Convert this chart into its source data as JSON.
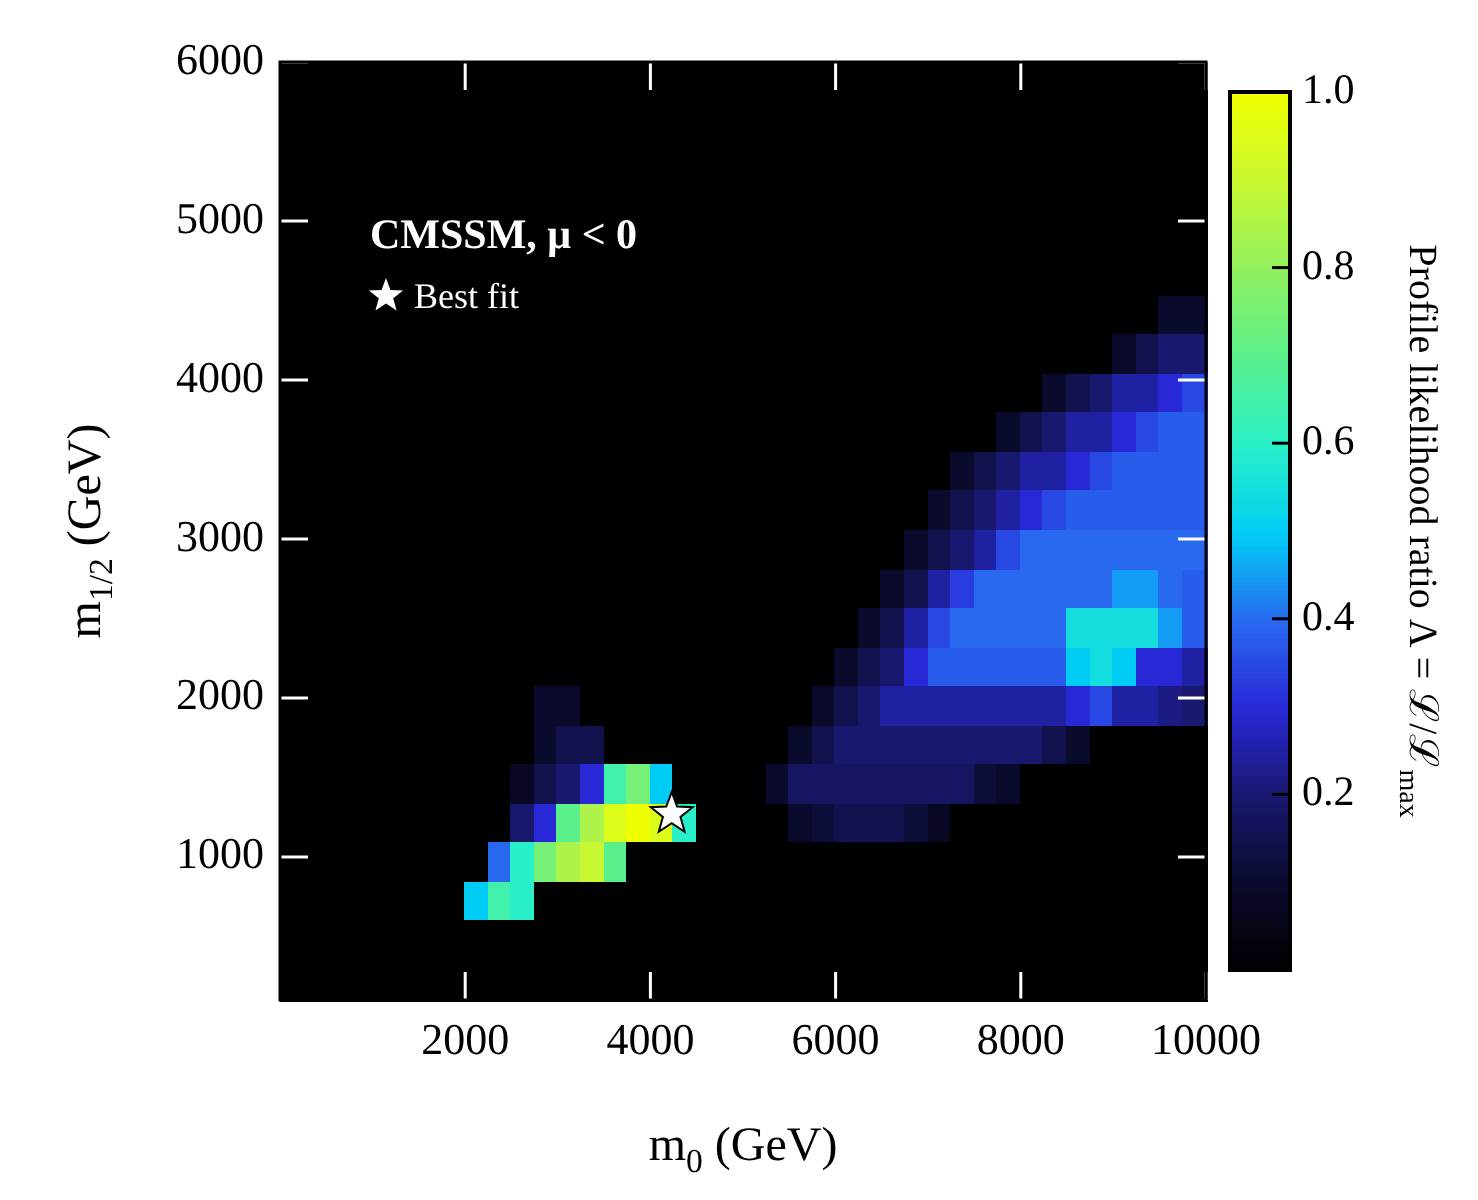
{
  "chart_data": {
    "type": "heatmap",
    "annotations": [
      "CMSSM, μ < 0"
    ],
    "xlabel": "m$_{0}$ (GeV)",
    "ylabel": "m$_{1/2}$ (GeV)",
    "clabel": "Profile likelihood ratio Λ = ℒ/ℒ$_{max}$",
    "xlim": [
      0,
      10000
    ],
    "xticks": [
      2000,
      4000,
      6000,
      8000,
      10000
    ],
    "ylim": [
      100,
      6000
    ],
    "yticks": [
      1000,
      2000,
      3000,
      4000,
      5000,
      6000
    ],
    "clim": [
      0,
      1
    ],
    "cticks": [
      0.2,
      0.4,
      0.6,
      0.8,
      {
        "value": 1,
        "label": "1.0"
      }
    ],
    "legend": "top left",
    "series": [
      {
        "type": "scatter",
        "name": "Best fit",
        "color": "#ffffff",
        "marker": "star",
        "x": [
          4230
        ],
        "values": [
          1270
        ]
      }
    ],
    "cells": [
      [
        0,
        0,
        0,
        0,
        0,
        0,
        0,
        0,
        0,
        0,
        0,
        0,
        0,
        0,
        0,
        0,
        0,
        0,
        0,
        0,
        0,
        0,
        0,
        0,
        0,
        0,
        0,
        0,
        0,
        0,
        0,
        0,
        0,
        0,
        0,
        0,
        0,
        0,
        0,
        0
      ],
      [
        0,
        0,
        0,
        0,
        0,
        0,
        0,
        0,
        0,
        0,
        0,
        0,
        0,
        0,
        0,
        0,
        0,
        0,
        0,
        0,
        0,
        0,
        0,
        0,
        0,
        0,
        0,
        0,
        0,
        0,
        0,
        0,
        0,
        0,
        0,
        0,
        0,
        0,
        0,
        0
      ],
      [
        0,
        0,
        0,
        0,
        0,
        0,
        0,
        0,
        0,
        0,
        0,
        0,
        0,
        0,
        0,
        0,
        0,
        0,
        0,
        0,
        0,
        0,
        0,
        0,
        0,
        0,
        0,
        0,
        0,
        0,
        0,
        0,
        0,
        0,
        0,
        0,
        0,
        0,
        0,
        0
      ],
      [
        0,
        0,
        0,
        0,
        0,
        0,
        0,
        0,
        0,
        0,
        0,
        0,
        0,
        0,
        0,
        0,
        0,
        0,
        0,
        0,
        0,
        0,
        0,
        0,
        0,
        0,
        0,
        0,
        0,
        0,
        0,
        0,
        0,
        0,
        0,
        0,
        0,
        0,
        0,
        0
      ],
      [
        0,
        0,
        0,
        0,
        0,
        0,
        0,
        0,
        0,
        0,
        0,
        0,
        0,
        0,
        0,
        0,
        0,
        0,
        0,
        0,
        0,
        0,
        0,
        0,
        0,
        0,
        0,
        0,
        0,
        0,
        0,
        0,
        0,
        0,
        0,
        0,
        0,
        0,
        0,
        0
      ],
      [
        0,
        0,
        0,
        0,
        0,
        0,
        0,
        0,
        0,
        0,
        0,
        0,
        0,
        0,
        0,
        0,
        0,
        0,
        0,
        0,
        0,
        0,
        0,
        0,
        0,
        0,
        0,
        0,
        0,
        0,
        0,
        0,
        0,
        0,
        0,
        0,
        0,
        0,
        0,
        0
      ],
      [
        0,
        0,
        0,
        0,
        0,
        0,
        0,
        0,
        0,
        0,
        0,
        0,
        0,
        0,
        0,
        0,
        0,
        0,
        0,
        0,
        0,
        0,
        0,
        0,
        0,
        0,
        0,
        0,
        0,
        0,
        0,
        0,
        0,
        0,
        0,
        0,
        0,
        0,
        0.1,
        0.1
      ],
      [
        0,
        0,
        0,
        0,
        0,
        0,
        0,
        0,
        0,
        0,
        0,
        0,
        0,
        0,
        0,
        0,
        0,
        0,
        0,
        0,
        0,
        0,
        0,
        0,
        0,
        0,
        0,
        0,
        0,
        0,
        0,
        0,
        0,
        0,
        0,
        0,
        0.1,
        0.15,
        0.2,
        0.2
      ],
      [
        0,
        0,
        0,
        0,
        0,
        0,
        0,
        0,
        0,
        0,
        0,
        0,
        0,
        0,
        0,
        0,
        0,
        0,
        0,
        0,
        0,
        0,
        0,
        0,
        0,
        0,
        0,
        0,
        0,
        0,
        0,
        0,
        0,
        0.1,
        0.15,
        0.2,
        0.25,
        0.25,
        0.3,
        0.35
      ],
      [
        0,
        0,
        0,
        0,
        0,
        0,
        0,
        0,
        0,
        0,
        0,
        0,
        0,
        0,
        0,
        0,
        0,
        0,
        0,
        0,
        0,
        0,
        0,
        0,
        0,
        0,
        0,
        0,
        0,
        0,
        0,
        0.1,
        0.15,
        0.2,
        0.25,
        0.25,
        0.3,
        0.35,
        0.38,
        0.38
      ],
      [
        0,
        0,
        0,
        0,
        0,
        0,
        0,
        0,
        0,
        0,
        0,
        0,
        0,
        0,
        0,
        0,
        0,
        0,
        0,
        0,
        0,
        0,
        0,
        0,
        0,
        0,
        0,
        0,
        0,
        0.1,
        0.15,
        0.2,
        0.25,
        0.25,
        0.3,
        0.35,
        0.38,
        0.38,
        0.38,
        0.38
      ],
      [
        0,
        0,
        0,
        0,
        0,
        0,
        0,
        0,
        0,
        0,
        0,
        0,
        0,
        0,
        0,
        0,
        0,
        0,
        0,
        0,
        0,
        0,
        0,
        0,
        0,
        0,
        0,
        0,
        0.1,
        0.15,
        0.2,
        0.25,
        0.3,
        0.35,
        0.38,
        0.38,
        0.38,
        0.38,
        0.38,
        0.38
      ],
      [
        0,
        0,
        0,
        0,
        0,
        0,
        0,
        0,
        0,
        0,
        0,
        0,
        0,
        0,
        0,
        0,
        0,
        0,
        0,
        0,
        0,
        0,
        0,
        0,
        0,
        0,
        0,
        0.1,
        0.15,
        0.2,
        0.25,
        0.35,
        0.4,
        0.4,
        0.4,
        0.4,
        0.4,
        0.4,
        0.4,
        0.4
      ],
      [
        0,
        0,
        0,
        0,
        0,
        0,
        0,
        0,
        0,
        0,
        0,
        0,
        0,
        0,
        0,
        0,
        0,
        0,
        0,
        0,
        0,
        0,
        0,
        0,
        0,
        0,
        0.1,
        0.15,
        0.25,
        0.33,
        0.4,
        0.4,
        0.4,
        0.4,
        0.4,
        0.4,
        0.45,
        0.45,
        0.4,
        0.38
      ],
      [
        0,
        0,
        0,
        0,
        0,
        0,
        0,
        0,
        0,
        0,
        0,
        0,
        0,
        0,
        0,
        0,
        0,
        0,
        0,
        0,
        0,
        0,
        0,
        0,
        0,
        0.1,
        0.15,
        0.25,
        0.35,
        0.4,
        0.4,
        0.4,
        0.4,
        0.4,
        0.55,
        0.55,
        0.55,
        0.55,
        0.45,
        0.38
      ],
      [
        0,
        0,
        0,
        0,
        0,
        0,
        0,
        0,
        0,
        0,
        0,
        0,
        0,
        0,
        0,
        0,
        0,
        0,
        0,
        0,
        0,
        0,
        0,
        0,
        0.1,
        0.15,
        0.2,
        0.3,
        0.38,
        0.38,
        0.38,
        0.38,
        0.38,
        0.38,
        0.5,
        0.55,
        0.5,
        0.3,
        0.3,
        0.25
      ],
      [
        0,
        0,
        0,
        0,
        0,
        0,
        0,
        0,
        0,
        0,
        0,
        0.1,
        0.1,
        0,
        0,
        0,
        0,
        0,
        0,
        0,
        0,
        0,
        0,
        0.1,
        0.15,
        0.2,
        0.25,
        0.25,
        0.25,
        0.25,
        0.25,
        0.25,
        0.25,
        0.25,
        0.3,
        0.35,
        0.25,
        0.25,
        0.22,
        0.2
      ],
      [
        0,
        0,
        0,
        0,
        0,
        0,
        0,
        0,
        0,
        0,
        0,
        0.1,
        0.15,
        0.15,
        0,
        0,
        0,
        0,
        0,
        0,
        0,
        0,
        0.1,
        0.15,
        0.2,
        0.2,
        0.2,
        0.2,
        0.2,
        0.2,
        0.2,
        0.2,
        0.2,
        0.15,
        0.1,
        0,
        0,
        0,
        0,
        0
      ],
      [
        0,
        0,
        0,
        0,
        0,
        0,
        0,
        0,
        0,
        0,
        0.08,
        0.15,
        0.2,
        0.3,
        0.65,
        0.75,
        0.5,
        0,
        0,
        0,
        0,
        0.1,
        0.18,
        0.18,
        0.18,
        0.18,
        0.18,
        0.18,
        0.18,
        0.18,
        0.12,
        0.1,
        0,
        0,
        0,
        0,
        0,
        0,
        0,
        0
      ],
      [
        0,
        0,
        0,
        0,
        0,
        0,
        0,
        0,
        0,
        0,
        0.2,
        0.3,
        0.7,
        0.85,
        0.95,
        1,
        0.95,
        0.6,
        0,
        0,
        0,
        0,
        0.1,
        0.12,
        0.15,
        0.15,
        0.15,
        0.12,
        0.08,
        0,
        0,
        0,
        0,
        0,
        0,
        0,
        0,
        0,
        0,
        0
      ],
      [
        0,
        0,
        0,
        0,
        0,
        0,
        0,
        0,
        0,
        0.4,
        0.6,
        0.75,
        0.85,
        0.9,
        0.7,
        0,
        0,
        0,
        0,
        0,
        0,
        0,
        0,
        0,
        0,
        0,
        0,
        0,
        0,
        0,
        0,
        0,
        0,
        0,
        0,
        0,
        0,
        0,
        0,
        0
      ],
      [
        0,
        0,
        0,
        0,
        0,
        0,
        0,
        0,
        0.5,
        0.65,
        0.6,
        0,
        0,
        0,
        0,
        0,
        0,
        0,
        0,
        0,
        0,
        0,
        0,
        0,
        0,
        0,
        0,
        0,
        0,
        0,
        0,
        0,
        0,
        0,
        0,
        0,
        0,
        0,
        0,
        0
      ],
      [
        0,
        0,
        0,
        0,
        0,
        0,
        0,
        0,
        0,
        0,
        0,
        0,
        0,
        0,
        0,
        0,
        0,
        0,
        0,
        0,
        0,
        0,
        0,
        0,
        0,
        0,
        0,
        0,
        0,
        0,
        0,
        0,
        0,
        0,
        0,
        0,
        0,
        0,
        0,
        0
      ],
      [
        0,
        0,
        0,
        0,
        0,
        0,
        0,
        0,
        0,
        0,
        0,
        0,
        0,
        0,
        0,
        0,
        0,
        0,
        0,
        0,
        0,
        0,
        0,
        0,
        0,
        0,
        0,
        0,
        0,
        0,
        0,
        0,
        0,
        0,
        0,
        0,
        0,
        0,
        0,
        0
      ]
    ]
  }
}
